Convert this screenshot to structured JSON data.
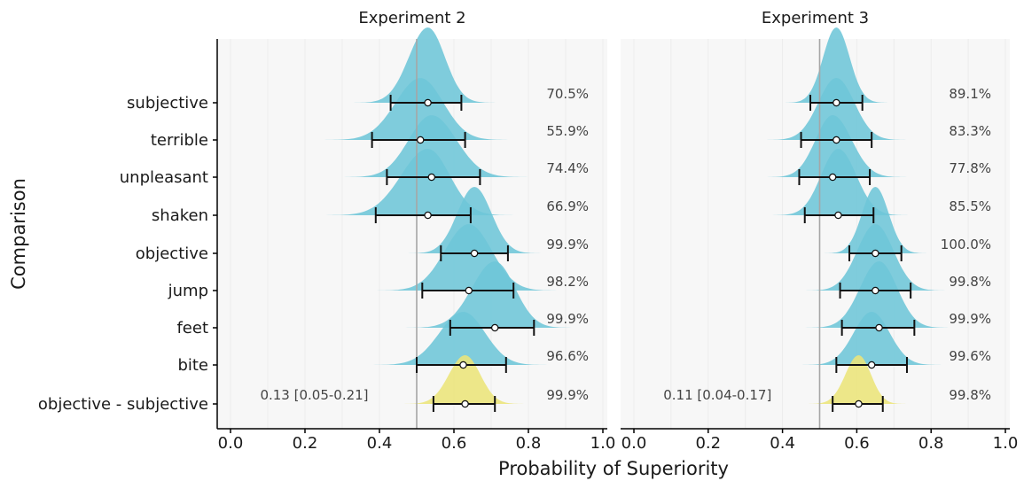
{
  "chart_data": {
    "type": "ridgeline",
    "xlabel": "Probability of Superiority",
    "ylabel": "Comparison",
    "xlim": [
      0.0,
      1.0
    ],
    "xticks": [
      "0.0",
      "0.2",
      "0.4",
      "0.6",
      "0.8",
      "1.0"
    ],
    "reference_line": 0.5,
    "categories": [
      "subjective",
      "terrible",
      "unpleasant",
      "shaken",
      "objective",
      "jump",
      "feet",
      "bite",
      "objective - subjective"
    ],
    "colors": {
      "word": "#6ec6d8",
      "contrast": "#ece57a",
      "panel_bg": "#f7f7f7",
      "grid": "#ebebeb",
      "refline": "#a6a6a6"
    },
    "panels": [
      {
        "title": "Experiment 2",
        "annotation": "0.13 [0.05-0.21]",
        "rows": [
          {
            "label": "subjective",
            "median": 0.53,
            "lo": 0.43,
            "hi": 0.62,
            "pct": "70.5%"
          },
          {
            "label": "terrible",
            "median": 0.51,
            "lo": 0.38,
            "hi": 0.63,
            "pct": "55.9%"
          },
          {
            "label": "unpleasant",
            "median": 0.54,
            "lo": 0.42,
            "hi": 0.67,
            "pct": "74.4%"
          },
          {
            "label": "shaken",
            "median": 0.53,
            "lo": 0.39,
            "hi": 0.645,
            "pct": "66.9%"
          },
          {
            "label": "objective",
            "median": 0.655,
            "lo": 0.565,
            "hi": 0.745,
            "pct": "99.9%"
          },
          {
            "label": "jump",
            "median": 0.64,
            "lo": 0.515,
            "hi": 0.76,
            "pct": "98.2%"
          },
          {
            "label": "feet",
            "median": 0.71,
            "lo": 0.59,
            "hi": 0.815,
            "pct": "99.9%"
          },
          {
            "label": "bite",
            "median": 0.625,
            "lo": 0.5,
            "hi": 0.74,
            "pct": "96.6%"
          },
          {
            "label": "objective - subjective",
            "median": 0.63,
            "lo": 0.545,
            "hi": 0.71,
            "pct": "99.9%"
          }
        ]
      },
      {
        "title": "Experiment 3",
        "annotation": "0.11 [0.04-0.17]",
        "rows": [
          {
            "label": "subjective",
            "median": 0.545,
            "lo": 0.475,
            "hi": 0.615,
            "pct": "89.1%"
          },
          {
            "label": "terrible",
            "median": 0.545,
            "lo": 0.45,
            "hi": 0.64,
            "pct": "83.3%"
          },
          {
            "label": "unpleasant",
            "median": 0.535,
            "lo": 0.445,
            "hi": 0.635,
            "pct": "77.8%"
          },
          {
            "label": "shaken",
            "median": 0.55,
            "lo": 0.46,
            "hi": 0.645,
            "pct": "85.5%"
          },
          {
            "label": "objective",
            "median": 0.65,
            "lo": 0.58,
            "hi": 0.72,
            "pct": "100.0%"
          },
          {
            "label": "jump",
            "median": 0.65,
            "lo": 0.555,
            "hi": 0.745,
            "pct": "99.8%"
          },
          {
            "label": "feet",
            "median": 0.66,
            "lo": 0.56,
            "hi": 0.755,
            "pct": "99.9%"
          },
          {
            "label": "bite",
            "median": 0.64,
            "lo": 0.545,
            "hi": 0.735,
            "pct": "99.6%"
          },
          {
            "label": "objective - subjective",
            "median": 0.605,
            "lo": 0.535,
            "hi": 0.67,
            "pct": "99.8%"
          }
        ]
      }
    ]
  }
}
